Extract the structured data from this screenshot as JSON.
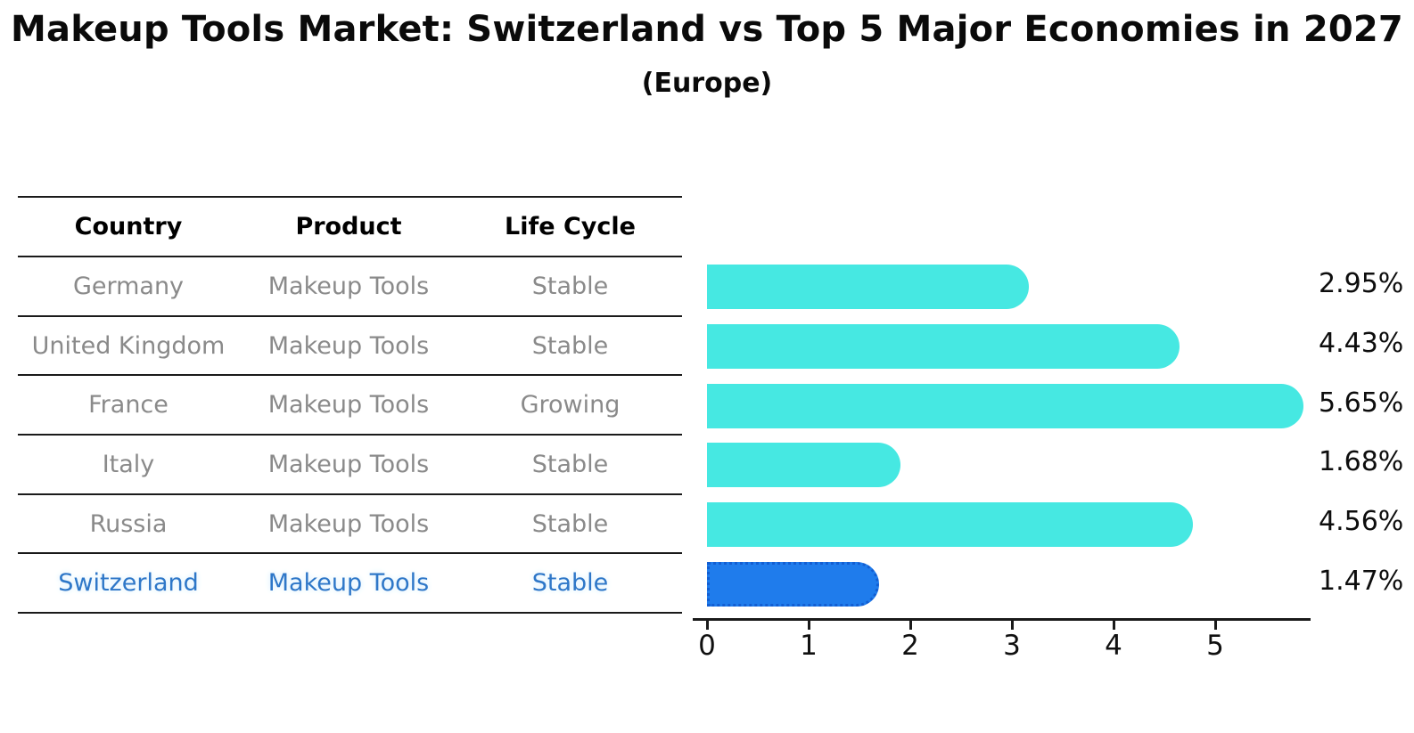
{
  "page": {
    "title": "Makeup Tools Market: Switzerland vs Top 5 Major Economies in 2027",
    "subtitle": "(Europe)"
  },
  "table": {
    "headers": [
      "Country",
      "Product",
      "Life Cycle"
    ]
  },
  "chart_data": {
    "type": "bar",
    "orientation": "horizontal",
    "title": "Makeup Tools Market: Switzerland vs Top 5 Major Economies in 2027",
    "subtitle": "(Europe)",
    "xlabel": "",
    "ylabel": "",
    "grid": false,
    "x_axis": {
      "ticks": [
        0,
        1,
        2,
        3,
        4,
        5
      ],
      "range": [
        0,
        5.94
      ]
    },
    "categories": [
      "Germany",
      "United Kingdom",
      "France",
      "Italy",
      "Russia",
      "Switzerland"
    ],
    "values": [
      2.95,
      4.43,
      5.65,
      1.68,
      4.56,
      1.47
    ],
    "rows": [
      {
        "country": "Germany",
        "product": "Makeup Tools",
        "life_cycle": "Stable",
        "value": 2.95,
        "label": "2.95%",
        "highlight": false
      },
      {
        "country": "United Kingdom",
        "product": "Makeup Tools",
        "life_cycle": "Stable",
        "value": 4.43,
        "label": "4.43%",
        "highlight": false
      },
      {
        "country": "France",
        "product": "Makeup Tools",
        "life_cycle": "Growing",
        "value": 5.65,
        "label": "5.65%",
        "highlight": false
      },
      {
        "country": "Italy",
        "product": "Makeup Tools",
        "life_cycle": "Stable",
        "value": 1.68,
        "label": "1.68%",
        "highlight": false
      },
      {
        "country": "Russia",
        "product": "Makeup Tools",
        "life_cycle": "Stable",
        "value": 4.56,
        "label": "4.56%",
        "highlight": false
      },
      {
        "country": "Switzerland",
        "product": "Makeup Tools",
        "life_cycle": "Stable",
        "value": 1.47,
        "label": "1.47%",
        "highlight": true
      }
    ],
    "colors": {
      "bar": "#46E8E2",
      "highlight_bar": "#1F7CEC",
      "highlight_border": "#135ED2",
      "highlight_text": "#2E77C8",
      "row_text": "#8A8A8A",
      "header_text": "#000000",
      "axis": "#1A1A1A"
    },
    "legend": null
  }
}
